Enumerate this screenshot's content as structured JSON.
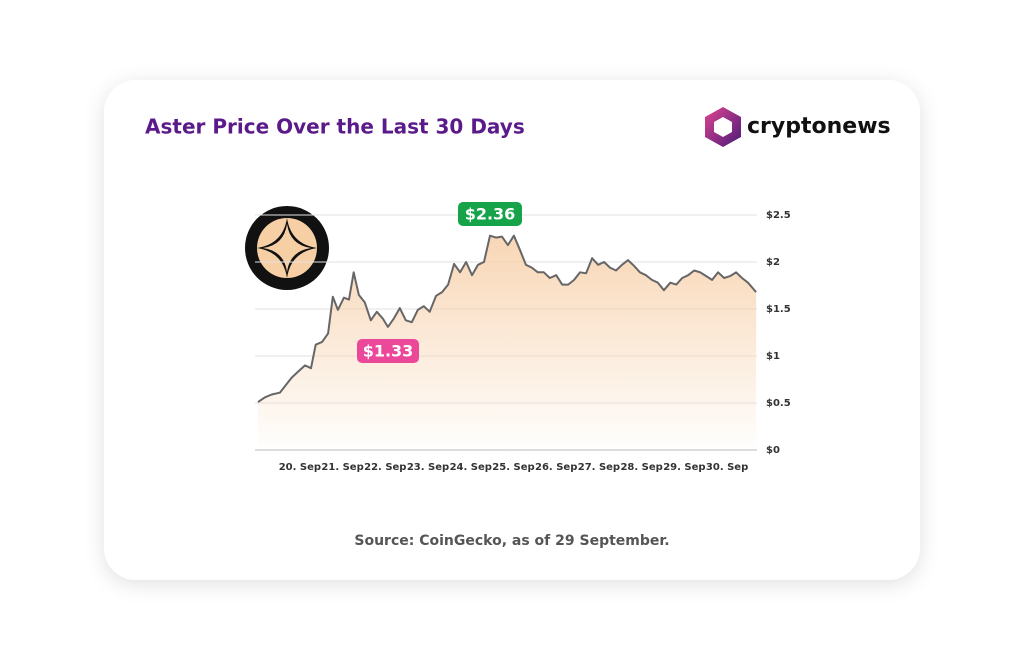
{
  "chart_data": {
    "type": "area",
    "title": "Aster Price Over the Last 30 Days",
    "brand": "cryptonews",
    "source": "Source: CoinGecko, as of 29 September.",
    "line_color": "#666666",
    "fill_color": "#f7cfa8",
    "grid": true,
    "x": [
      19.02,
      19.18,
      19.34,
      19.53,
      19.67,
      19.81,
      19.95,
      20.12,
      20.26,
      20.37,
      20.52,
      20.66,
      20.77,
      20.89,
      21.03,
      21.15,
      21.26,
      21.38,
      21.52,
      21.66,
      21.8,
      21.94,
      22.06,
      22.2,
      22.34,
      22.48,
      22.62,
      22.76,
      22.9,
      23.04,
      23.19,
      23.33,
      23.47,
      23.61,
      23.75,
      23.89,
      24.03,
      24.17,
      24.31,
      24.45,
      24.59,
      24.73,
      24.87,
      25.01,
      25.15,
      25.29,
      25.43,
      25.57,
      25.71,
      25.85,
      26.0,
      26.14,
      26.28,
      26.42,
      26.56,
      26.7,
      26.84,
      26.98,
      27.12,
      27.26,
      27.4,
      27.54,
      27.68,
      27.82,
      27.96,
      28.1,
      28.24,
      28.38,
      28.52,
      28.67,
      28.81,
      28.95,
      29.09,
      29.23,
      29.37,
      29.51,
      29.65,
      29.79,
      29.93,
      30.07,
      30.21,
      30.35,
      30.49,
      30.68
    ],
    "values": [
      0.51,
      0.56,
      0.59,
      0.61,
      0.69,
      0.77,
      0.83,
      0.9,
      0.87,
      1.12,
      1.15,
      1.24,
      1.63,
      1.49,
      1.62,
      1.6,
      1.89,
      1.65,
      1.57,
      1.38,
      1.47,
      1.4,
      1.31,
      1.4,
      1.51,
      1.38,
      1.36,
      1.49,
      1.53,
      1.47,
      1.64,
      1.68,
      1.76,
      1.98,
      1.89,
      2.0,
      1.86,
      1.97,
      2.0,
      2.28,
      2.26,
      2.27,
      2.18,
      2.28,
      2.13,
      1.97,
      1.94,
      1.89,
      1.89,
      1.83,
      1.86,
      1.76,
      1.76,
      1.81,
      1.89,
      1.88,
      2.04,
      1.97,
      2.0,
      1.94,
      1.91,
      1.97,
      2.02,
      1.96,
      1.89,
      1.86,
      1.81,
      1.78,
      1.7,
      1.78,
      1.76,
      1.83,
      1.86,
      1.91,
      1.89,
      1.85,
      1.81,
      1.89,
      1.83,
      1.85,
      1.89,
      1.83,
      1.78,
      1.68
    ],
    "xlim": [
      18.95,
      30.7
    ],
    "xticks": [
      {
        "value": 20,
        "label": "20. Sep"
      },
      {
        "value": 21,
        "label": "21. Sep"
      },
      {
        "value": 22,
        "label": "22. Sep"
      },
      {
        "value": 23,
        "label": "23. Sep"
      },
      {
        "value": 24,
        "label": "24. Sep"
      },
      {
        "value": 25,
        "label": "25. Sep"
      },
      {
        "value": 26,
        "label": "26. Sep"
      },
      {
        "value": 27,
        "label": "27. Sep"
      },
      {
        "value": 28,
        "label": "28. Sep"
      },
      {
        "value": 29,
        "label": "29. Sep"
      },
      {
        "value": 30,
        "label": "30. Sep"
      }
    ],
    "ylim": [
      0,
      2.5
    ],
    "yticks": [
      {
        "value": 0,
        "label": "$0"
      },
      {
        "value": 0.5,
        "label": "$0.5"
      },
      {
        "value": 1,
        "label": "$1"
      },
      {
        "value": 1.5,
        "label": "$1.5"
      },
      {
        "value": 2,
        "label": "$2"
      },
      {
        "value": 2.5,
        "label": "$2.5"
      }
    ],
    "annotations": [
      {
        "label": "$2.36",
        "value": 2.36,
        "color": "#16a34a"
      },
      {
        "label": "$1.33",
        "value": 1.33,
        "color": "#ec4899"
      }
    ]
  }
}
